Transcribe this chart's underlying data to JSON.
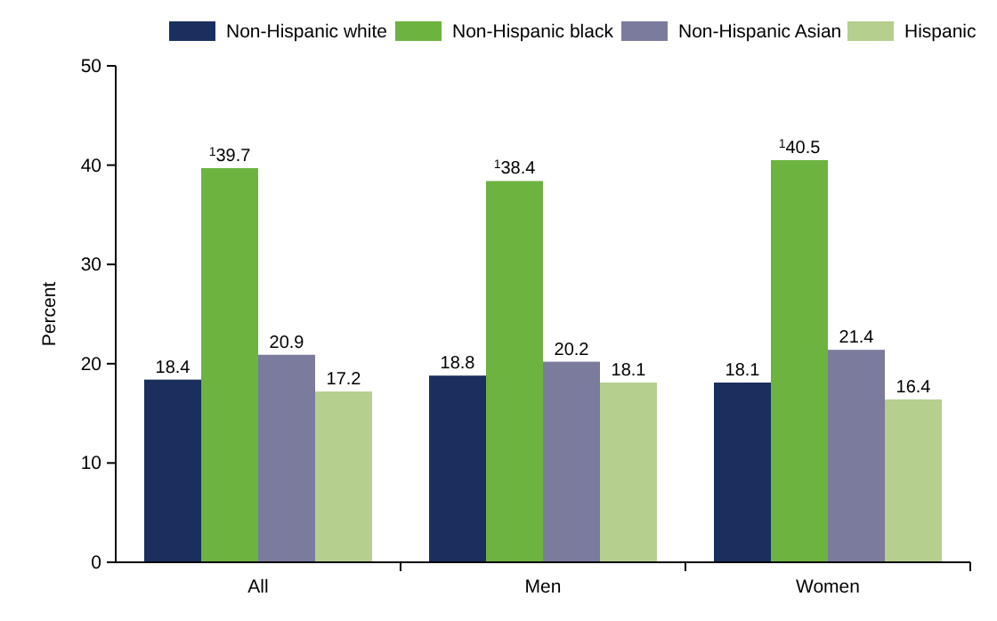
{
  "chart_data": {
    "type": "bar",
    "categories": [
      "All",
      "Men",
      "Women"
    ],
    "ylabel": "Percent",
    "ylim": [
      0,
      50
    ],
    "yticks": [
      0,
      10,
      20,
      30,
      40,
      50
    ],
    "legend": "top",
    "series": [
      {
        "name": "Non-Hispanic white",
        "color": "#1b2f5e",
        "values": [
          18.4,
          18.8,
          18.1
        ],
        "value_labels": [
          "18.4",
          "18.8",
          "18.1"
        ]
      },
      {
        "name": "Non-Hispanic black",
        "color": "#6db33f",
        "values": [
          39.7,
          38.4,
          40.5
        ],
        "value_labels": [
          "$^{1}$39.7",
          "$^{1}$38.4",
          "$^{1}$40.5"
        ]
      },
      {
        "name": "Non-Hispanic Asian",
        "color": "#7b7b9d",
        "values": [
          20.9,
          20.2,
          21.4
        ],
        "value_labels": [
          "20.9",
          "20.2",
          "21.4"
        ]
      },
      {
        "name": "Hispanic",
        "color": "#b5cf8f",
        "values": [
          17.2,
          18.1,
          16.4
        ],
        "value_labels": [
          "17.2",
          "18.1",
          "16.4"
        ]
      }
    ]
  }
}
